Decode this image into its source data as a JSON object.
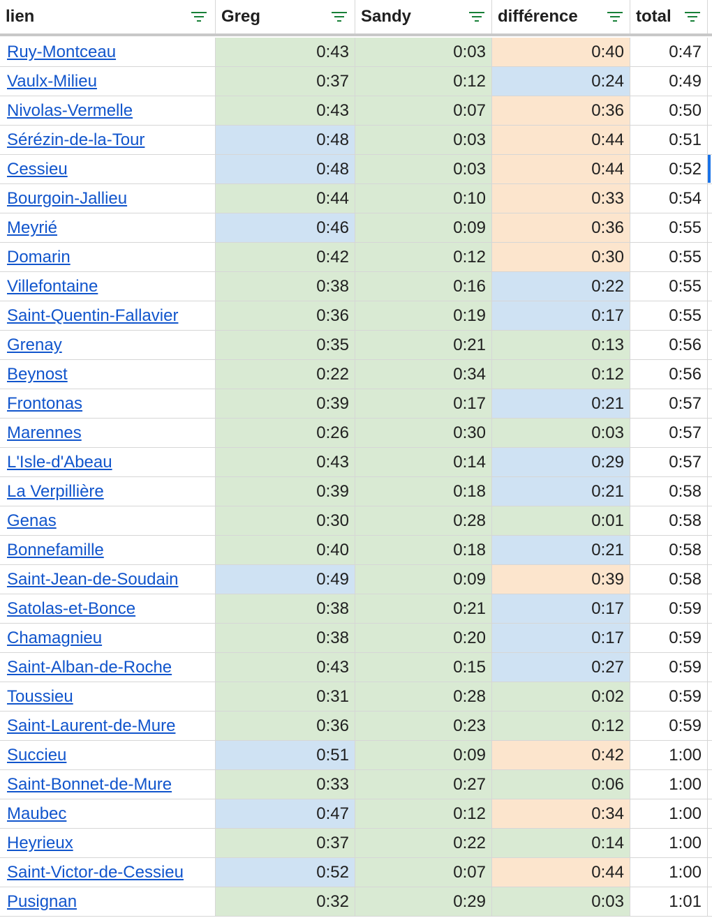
{
  "headers": {
    "lien": "lien",
    "greg": "Greg",
    "sandy": "Sandy",
    "difference": "différence",
    "total": "total"
  },
  "colors": {
    "green": "#d9ead3",
    "blue": "#cfe2f3",
    "orange": "#fce5cd",
    "link": "#1155cc",
    "filter": "#188038"
  },
  "rows": [
    {
      "lien": "Ruy-Montceau",
      "greg": "0:43",
      "greg_c": "green",
      "sandy": "0:03",
      "sandy_c": "green",
      "diff": "0:40",
      "diff_c": "orange",
      "total": "0:47"
    },
    {
      "lien": "Vaulx-Milieu",
      "greg": "0:37",
      "greg_c": "green",
      "sandy": "0:12",
      "sandy_c": "green",
      "diff": "0:24",
      "diff_c": "blue",
      "total": "0:49"
    },
    {
      "lien": "Nivolas-Vermelle",
      "greg": "0:43",
      "greg_c": "green",
      "sandy": "0:07",
      "sandy_c": "green",
      "diff": "0:36",
      "diff_c": "orange",
      "total": "0:50"
    },
    {
      "lien": "Sérézin-de-la-Tour",
      "greg": "0:48",
      "greg_c": "blue",
      "sandy": "0:03",
      "sandy_c": "green",
      "diff": "0:44",
      "diff_c": "orange",
      "total": "0:51"
    },
    {
      "lien": "Cessieu",
      "greg": "0:48",
      "greg_c": "blue",
      "sandy": "0:03",
      "sandy_c": "green",
      "diff": "0:44",
      "diff_c": "orange",
      "total": "0:52"
    },
    {
      "lien": "Bourgoin-Jallieu",
      "greg": "0:44",
      "greg_c": "green",
      "sandy": "0:10",
      "sandy_c": "green",
      "diff": "0:33",
      "diff_c": "orange",
      "total": "0:54"
    },
    {
      "lien": "Meyrié",
      "greg": "0:46",
      "greg_c": "blue",
      "sandy": "0:09",
      "sandy_c": "green",
      "diff": "0:36",
      "diff_c": "orange",
      "total": "0:55"
    },
    {
      "lien": "Domarin",
      "greg": "0:42",
      "greg_c": "green",
      "sandy": "0:12",
      "sandy_c": "green",
      "diff": "0:30",
      "diff_c": "orange",
      "total": "0:55"
    },
    {
      "lien": "Villefontaine",
      "greg": "0:38",
      "greg_c": "green",
      "sandy": "0:16",
      "sandy_c": "green",
      "diff": "0:22",
      "diff_c": "blue",
      "total": "0:55"
    },
    {
      "lien": "Saint-Quentin-Fallavier",
      "greg": "0:36",
      "greg_c": "green",
      "sandy": "0:19",
      "sandy_c": "green",
      "diff": "0:17",
      "diff_c": "blue",
      "total": "0:55"
    },
    {
      "lien": "Grenay",
      "greg": "0:35",
      "greg_c": "green",
      "sandy": "0:21",
      "sandy_c": "green",
      "diff": "0:13",
      "diff_c": "green",
      "total": "0:56"
    },
    {
      "lien": "Beynost",
      "greg": "0:22",
      "greg_c": "green",
      "sandy": "0:34",
      "sandy_c": "green",
      "diff": "0:12",
      "diff_c": "green",
      "total": "0:56"
    },
    {
      "lien": "Frontonas",
      "greg": "0:39",
      "greg_c": "green",
      "sandy": "0:17",
      "sandy_c": "green",
      "diff": "0:21",
      "diff_c": "blue",
      "total": "0:57"
    },
    {
      "lien": "Marennes",
      "greg": "0:26",
      "greg_c": "green",
      "sandy": "0:30",
      "sandy_c": "green",
      "diff": "0:03",
      "diff_c": "green",
      "total": "0:57"
    },
    {
      "lien": "L'Isle-d'Abeau",
      "greg": "0:43",
      "greg_c": "green",
      "sandy": "0:14",
      "sandy_c": "green",
      "diff": "0:29",
      "diff_c": "blue",
      "total": "0:57"
    },
    {
      "lien": "La Verpillière",
      "greg": "0:39",
      "greg_c": "green",
      "sandy": "0:18",
      "sandy_c": "green",
      "diff": "0:21",
      "diff_c": "blue",
      "total": "0:58"
    },
    {
      "lien": "Genas",
      "greg": "0:30",
      "greg_c": "green",
      "sandy": "0:28",
      "sandy_c": "green",
      "diff": "0:01",
      "diff_c": "green",
      "total": "0:58"
    },
    {
      "lien": "Bonnefamille",
      "greg": "0:40",
      "greg_c": "green",
      "sandy": "0:18",
      "sandy_c": "green",
      "diff": "0:21",
      "diff_c": "blue",
      "total": "0:58"
    },
    {
      "lien": "Saint-Jean-de-Soudain",
      "greg": "0:49",
      "greg_c": "blue",
      "sandy": "0:09",
      "sandy_c": "green",
      "diff": "0:39",
      "diff_c": "orange",
      "total": "0:58"
    },
    {
      "lien": "Satolas-et-Bonce",
      "greg": "0:38",
      "greg_c": "green",
      "sandy": "0:21",
      "sandy_c": "green",
      "diff": "0:17",
      "diff_c": "blue",
      "total": "0:59"
    },
    {
      "lien": "Chamagnieu",
      "greg": "0:38",
      "greg_c": "green",
      "sandy": "0:20",
      "sandy_c": "green",
      "diff": "0:17",
      "diff_c": "blue",
      "total": "0:59"
    },
    {
      "lien": "Saint-Alban-de-Roche",
      "greg": "0:43",
      "greg_c": "green",
      "sandy": "0:15",
      "sandy_c": "green",
      "diff": "0:27",
      "diff_c": "blue",
      "total": "0:59"
    },
    {
      "lien": "Toussieu",
      "greg": "0:31",
      "greg_c": "green",
      "sandy": "0:28",
      "sandy_c": "green",
      "diff": "0:02",
      "diff_c": "green",
      "total": "0:59"
    },
    {
      "lien": "Saint-Laurent-de-Mure",
      "greg": "0:36",
      "greg_c": "green",
      "sandy": "0:23",
      "sandy_c": "green",
      "diff": "0:12",
      "diff_c": "green",
      "total": "0:59"
    },
    {
      "lien": "Succieu",
      "greg": "0:51",
      "greg_c": "blue",
      "sandy": "0:09",
      "sandy_c": "green",
      "diff": "0:42",
      "diff_c": "orange",
      "total": "1:00"
    },
    {
      "lien": "Saint-Bonnet-de-Mure",
      "greg": "0:33",
      "greg_c": "green",
      "sandy": "0:27",
      "sandy_c": "green",
      "diff": "0:06",
      "diff_c": "green",
      "total": "1:00"
    },
    {
      "lien": "Maubec",
      "greg": "0:47",
      "greg_c": "blue",
      "sandy": "0:12",
      "sandy_c": "green",
      "diff": "0:34",
      "diff_c": "orange",
      "total": "1:00"
    },
    {
      "lien": "Heyrieux",
      "greg": "0:37",
      "greg_c": "green",
      "sandy": "0:22",
      "sandy_c": "green",
      "diff": "0:14",
      "diff_c": "green",
      "total": "1:00"
    },
    {
      "lien": "Saint-Victor-de-Cessieu",
      "greg": "0:52",
      "greg_c": "blue",
      "sandy": "0:07",
      "sandy_c": "green",
      "diff": "0:44",
      "diff_c": "orange",
      "total": "1:00"
    },
    {
      "lien": "Pusignan",
      "greg": "0:32",
      "greg_c": "green",
      "sandy": "0:29",
      "sandy_c": "green",
      "diff": "0:03",
      "diff_c": "green",
      "total": "1:01"
    }
  ]
}
